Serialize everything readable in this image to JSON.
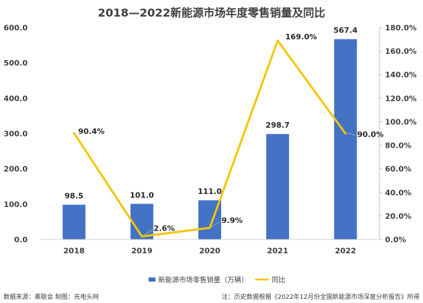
{
  "chart_data": {
    "type": "bar",
    "title": "2018—2022新能源市场年度零售销量及同比",
    "categories": [
      "2018",
      "2019",
      "2020",
      "2021",
      "2022"
    ],
    "series": [
      {
        "name": "新能源市场零售销量（万辆）",
        "type": "bar",
        "axis": "left",
        "values": [
          98.5,
          101.0,
          111.0,
          298.7,
          567.4
        ],
        "value_labels": [
          "98.5",
          "101.0",
          "111.0",
          "298.7",
          "567.4"
        ],
        "color": "#4472C4"
      },
      {
        "name": "同比",
        "type": "line",
        "axis": "right",
        "values": [
          90.4,
          2.6,
          9.9,
          169.0,
          90.0
        ],
        "value_labels": [
          "90.4%",
          "2.6%",
          "9.9%",
          "169.0%",
          "90.0%"
        ],
        "color": "#F5C400"
      }
    ],
    "y_left": {
      "lim": [
        0,
        600
      ],
      "ticks": [
        "0.0",
        "100.0",
        "200.0",
        "300.0",
        "400.0",
        "500.0",
        "600.0"
      ]
    },
    "y_right": {
      "lim": [
        0,
        180
      ],
      "ticks": [
        "0.0%",
        "20.0%",
        "40.0%",
        "60.0%",
        "80.0%",
        "100.0%",
        "120.0%",
        "140.0%",
        "160.0%",
        "180.0%"
      ]
    },
    "grid": false,
    "legend_position": "bottom"
  },
  "footer": {
    "source": "数据来源：乘联会   制图：充电头网",
    "note": "注：历史数据根据《2022年12月份全国新能源市场深度分析报告》所得"
  }
}
